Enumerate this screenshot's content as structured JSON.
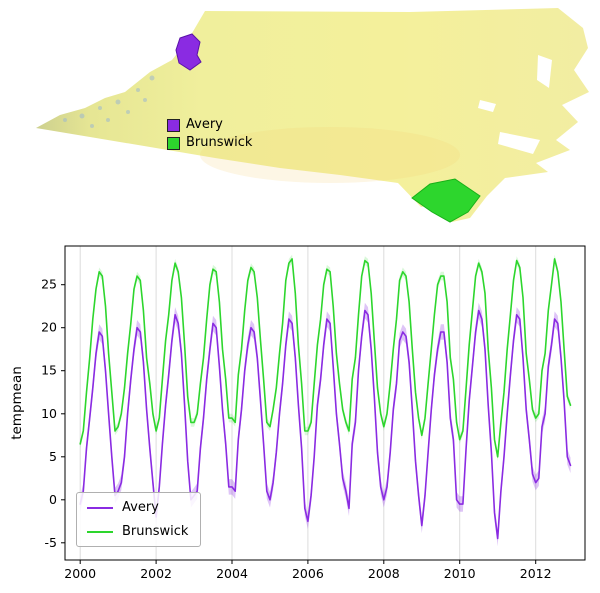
{
  "figure": {
    "background": "#ffffff"
  },
  "map": {
    "region": "North Carolina",
    "legend": {
      "items": [
        {
          "label": "Avery",
          "color": "#8a2be2"
        },
        {
          "label": "Brunswick",
          "color": "#2dd62d"
        }
      ]
    }
  },
  "chart_data": {
    "type": "line",
    "title": "",
    "xlabel": "",
    "ylabel": "tempmean",
    "x_ticks": [
      2000,
      2002,
      2004,
      2006,
      2008,
      2010,
      2012
    ],
    "y_ticks": [
      -5,
      0,
      5,
      10,
      15,
      20,
      25
    ],
    "xlim": [
      1999.6,
      2013.3
    ],
    "ylim": [
      -7,
      29.5
    ],
    "grid": {
      "vertical": true,
      "color": "#dcdcdc"
    },
    "legend": {
      "position": "lower-left"
    },
    "x_start": 2000.0,
    "x_step": "monthly",
    "series": [
      {
        "name": "Avery",
        "color": "#8a2be2",
        "band_halfwidth": 0.9,
        "band_opacity": 0.28,
        "values": [
          [
            -0.5,
            1.0,
            6.0,
            9.5,
            13.0,
            17.0,
            19.5,
            19.0,
            15.0,
            10.0,
            5.0,
            0.5
          ],
          [
            1.0,
            2.0,
            5.0,
            10.0,
            14.0,
            17.5,
            20.0,
            19.5,
            16.0,
            10.5,
            6.0,
            2.0
          ],
          [
            -2.0,
            1.5,
            6.5,
            11.0,
            14.5,
            18.5,
            21.5,
            20.5,
            17.0,
            11.0,
            4.5,
            0.0
          ],
          [
            0.5,
            1.0,
            6.0,
            9.5,
            14.0,
            17.5,
            20.5,
            20.0,
            15.5,
            10.5,
            6.5,
            1.5
          ],
          [
            1.5,
            1.0,
            7.0,
            10.5,
            15.0,
            18.0,
            20.0,
            19.5,
            16.5,
            11.5,
            6.5,
            1.0
          ],
          [
            0.0,
            2.0,
            5.5,
            10.0,
            13.5,
            18.0,
            21.0,
            20.5,
            16.5,
            11.0,
            6.0,
            -1.0
          ],
          [
            -2.5,
            0.5,
            5.0,
            11.0,
            14.0,
            18.0,
            21.0,
            20.5,
            15.5,
            10.0,
            6.5,
            2.5
          ],
          [
            1.0,
            -1.0,
            6.5,
            9.0,
            15.0,
            19.0,
            22.0,
            21.5,
            17.5,
            12.0,
            5.5,
            1.5
          ],
          [
            0.0,
            1.5,
            5.5,
            10.5,
            13.5,
            18.5,
            19.5,
            19.0,
            16.0,
            10.5,
            4.5,
            0.5
          ],
          [
            -3.0,
            0.5,
            5.5,
            10.5,
            14.5,
            17.5,
            19.5,
            19.5,
            16.0,
            9.5,
            7.0,
            0.0
          ],
          [
            -0.5,
            -0.5,
            6.0,
            11.5,
            15.5,
            19.5,
            22.0,
            21.0,
            17.5,
            11.0,
            5.5,
            -1.5
          ],
          [
            -4.5,
            1.0,
            5.0,
            10.0,
            14.5,
            18.5,
            21.5,
            21.0,
            16.5,
            10.5,
            7.0,
            3.0
          ],
          [
            2.0,
            2.5,
            8.5,
            10.0,
            15.5,
            18.0,
            21.0,
            20.5,
            16.5,
            11.5,
            5.0,
            4.0
          ]
        ]
      },
      {
        "name": "Brunswick",
        "color": "#2dd62d",
        "band_halfwidth": 0.5,
        "band_opacity": 0.18,
        "values": [
          [
            6.5,
            8.0,
            12.5,
            16.5,
            21.0,
            24.5,
            26.5,
            26.0,
            22.5,
            17.0,
            12.5,
            8.0
          ],
          [
            8.5,
            10.0,
            13.0,
            17.0,
            20.5,
            24.5,
            26.0,
            25.5,
            22.0,
            16.5,
            13.5,
            10.0
          ],
          [
            8.0,
            9.5,
            14.0,
            18.5,
            21.5,
            25.5,
            27.5,
            26.5,
            23.5,
            18.0,
            12.0,
            9.0
          ],
          [
            9.0,
            10.0,
            13.5,
            16.5,
            21.0,
            25.0,
            26.8,
            26.5,
            23.0,
            17.5,
            14.0,
            9.5
          ],
          [
            9.5,
            9.0,
            14.5,
            17.5,
            22.0,
            25.5,
            27.0,
            26.5,
            23.5,
            18.5,
            14.0,
            9.0
          ],
          [
            8.5,
            10.5,
            13.0,
            17.0,
            20.5,
            25.5,
            27.5,
            28.0,
            24.0,
            18.0,
            13.5,
            8.0
          ],
          [
            8.0,
            9.0,
            13.5,
            18.0,
            21.0,
            25.0,
            26.8,
            26.5,
            22.5,
            17.0,
            13.5,
            10.5
          ],
          [
            9.0,
            8.0,
            14.0,
            16.5,
            21.5,
            26.0,
            27.8,
            27.5,
            24.0,
            18.5,
            13.0,
            10.0
          ],
          [
            8.5,
            10.0,
            13.5,
            17.5,
            21.0,
            25.5,
            26.5,
            26.0,
            23.0,
            17.5,
            12.5,
            9.5
          ],
          [
            7.5,
            9.5,
            13.5,
            17.5,
            21.5,
            25.0,
            26.0,
            26.0,
            23.0,
            16.5,
            14.0,
            9.0
          ],
          [
            7.0,
            8.0,
            13.0,
            18.0,
            22.0,
            26.0,
            27.5,
            26.5,
            24.0,
            17.5,
            13.0,
            7.0
          ],
          [
            5.0,
            9.0,
            12.5,
            17.5,
            21.5,
            25.5,
            27.8,
            27.0,
            23.5,
            17.0,
            14.0,
            10.5
          ],
          [
            9.5,
            10.0,
            15.0,
            17.0,
            22.0,
            25.0,
            28.0,
            26.5,
            23.0,
            17.5,
            12.0,
            11.0
          ]
        ]
      }
    ]
  }
}
